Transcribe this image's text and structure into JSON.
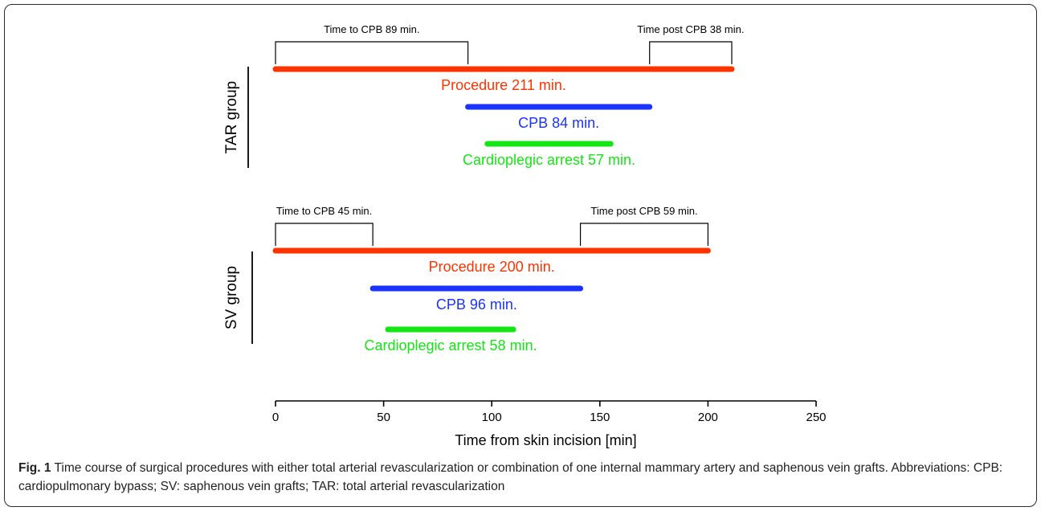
{
  "chart_data": {
    "type": "gantt",
    "xlabel": "Time from skin incision [min]",
    "xlim": [
      0,
      250
    ],
    "xticks": [
      0,
      50,
      100,
      150,
      200,
      250
    ],
    "groups": [
      {
        "name": "TAR group",
        "bars": [
          {
            "label": "Procedure 211 min.",
            "start": 0,
            "end": 211,
            "color": "#ff3300"
          },
          {
            "label": "CPB 84 min.",
            "start": 89,
            "end": 173,
            "color": "#1a33ff"
          },
          {
            "label": "Cardioplegic arrest 57 min.",
            "start": 98,
            "end": 155,
            "color": "#14e614"
          }
        ],
        "brackets": [
          {
            "label": "Time to CPB 89 min.",
            "start": 0,
            "end": 89
          },
          {
            "label": "Time post CPB 38 min.",
            "start": 173,
            "end": 211
          }
        ]
      },
      {
        "name": "SV group",
        "bars": [
          {
            "label": "Procedure 200 min.",
            "start": 0,
            "end": 200,
            "color": "#ff3300"
          },
          {
            "label": "CPB 96 min.",
            "start": 45,
            "end": 141,
            "color": "#1a33ff"
          },
          {
            "label": "Cardioplegic arrest 58 min.",
            "start": 52,
            "end": 110,
            "color": "#14e614"
          }
        ],
        "brackets": [
          {
            "label": "Time to CPB 45 min.",
            "start": 0,
            "end": 45
          },
          {
            "label": "Time post CPB 59 min.",
            "start": 141,
            "end": 200
          }
        ]
      }
    ]
  },
  "caption": {
    "figure_label": "Fig. 1",
    "text": "Time course of surgical procedures with either total arterial revascularization or combination of one internal mammary artery and saphenous vein grafts. Abbreviations: CPB: cardiopulmonary bypass; SV: saphenous vein grafts; TAR: total arterial revascularization"
  }
}
